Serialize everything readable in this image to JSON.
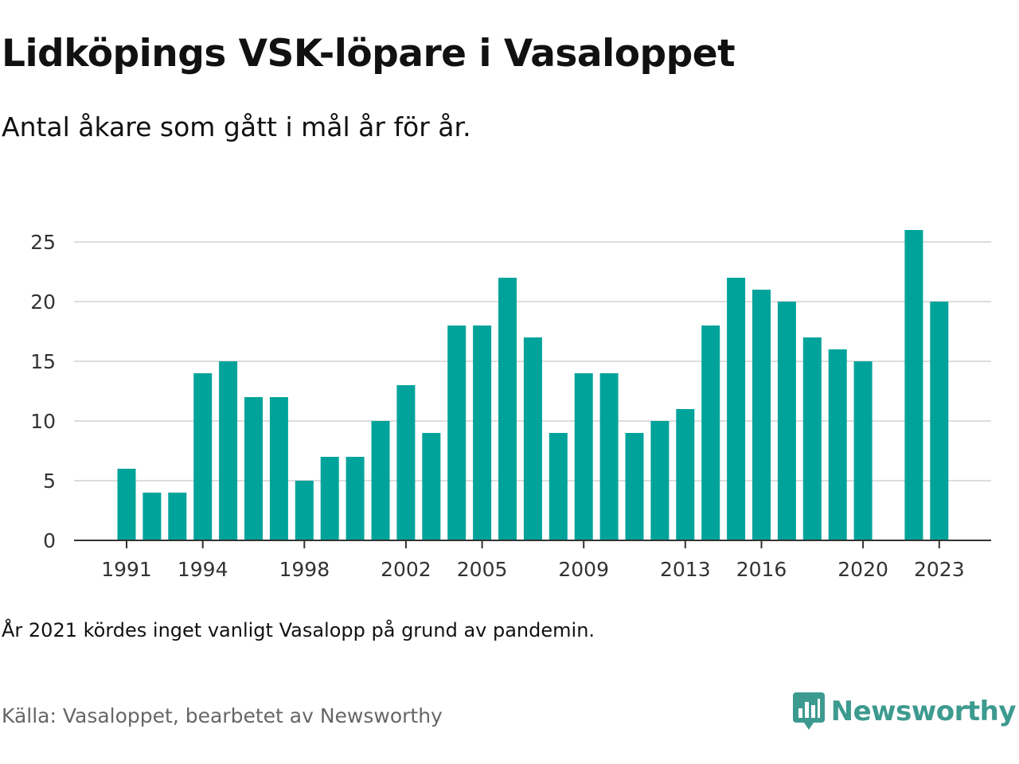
{
  "header": {
    "title": "Lidköpings VSK-löpare i Vasaloppet",
    "subtitle": "Antal åkare som gått i mål år för år."
  },
  "footer": {
    "note": "År 2021 kördes inget vanligt Vasalopp på grund av pandemin.",
    "source": "Källa: Vasaloppet, bearbetet av Newsworthy",
    "brand": "Newsworthy",
    "brand_icon": "newsworthy-logo-icon"
  },
  "colors": {
    "bar": "#00a39a",
    "grid": "#dddddd",
    "axis": "#333333",
    "brand": "#3d9a8f"
  },
  "chart_data": {
    "type": "bar",
    "title": "Lidköpings VSK-löpare i Vasaloppet",
    "subtitle": "Antal åkare som gått i mål år för år.",
    "xlabel": "",
    "ylabel": "",
    "x": [
      1991,
      1992,
      1993,
      1994,
      1995,
      1996,
      1997,
      1998,
      1999,
      2000,
      2001,
      2002,
      2003,
      2004,
      2005,
      2006,
      2007,
      2008,
      2009,
      2010,
      2011,
      2012,
      2013,
      2014,
      2015,
      2016,
      2017,
      2018,
      2019,
      2020,
      2021,
      2022,
      2023
    ],
    "values": [
      6,
      4,
      4,
      14,
      15,
      12,
      12,
      5,
      7,
      7,
      10,
      13,
      9,
      18,
      18,
      22,
      17,
      9,
      14,
      14,
      9,
      10,
      11,
      18,
      22,
      21,
      20,
      17,
      16,
      15,
      null,
      26,
      20
    ],
    "x_ticks": [
      "1991",
      "1994",
      "1998",
      "2002",
      "2005",
      "2009",
      "2013",
      "2016",
      "2020",
      "2023"
    ],
    "y_ticks": [
      "0",
      "5",
      "10",
      "15",
      "20",
      "25"
    ],
    "ylim": [
      0,
      27
    ],
    "grid": true,
    "legend": "none"
  }
}
